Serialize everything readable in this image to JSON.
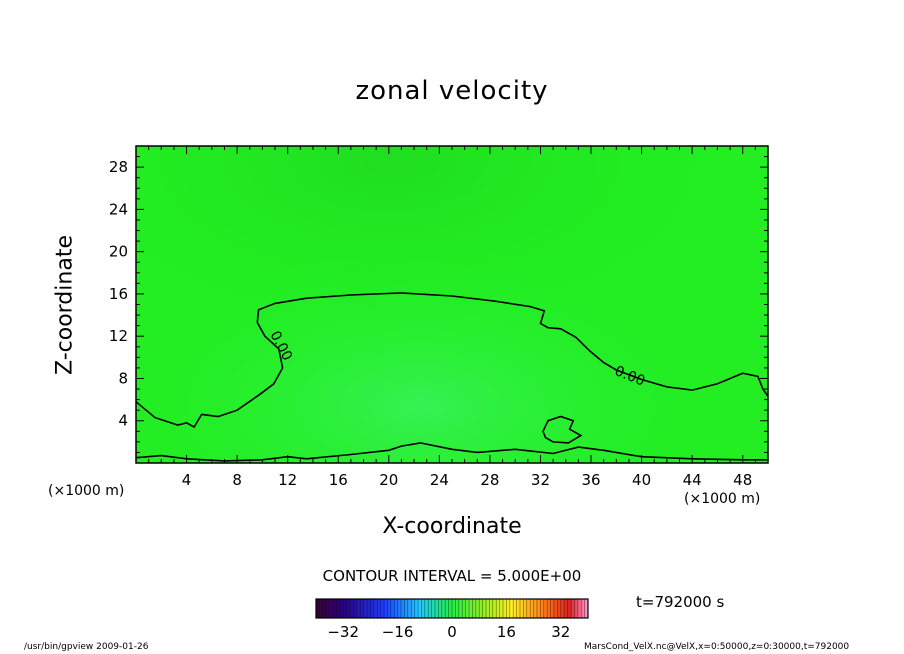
{
  "chart_data": {
    "type": "heatmap",
    "title": "zonal velocity",
    "xlabel": "X-coordinate",
    "ylabel": "Z-coordinate",
    "x_unit": "(×1000 m)",
    "y_unit": "(×1000 m)",
    "xlim": [
      0,
      50
    ],
    "ylim": [
      0,
      30
    ],
    "x_ticks": [
      4,
      8,
      12,
      16,
      20,
      24,
      28,
      32,
      36,
      40,
      44,
      48
    ],
    "y_ticks": [
      4,
      8,
      12,
      16,
      20,
      24,
      28
    ],
    "contour_interval": "CONTOUR INTERVAL = 5.000E+00",
    "contour_label": "0.00",
    "zero_contour": [
      [
        0,
        5.8
      ],
      [
        0.8,
        5.0
      ],
      [
        1.5,
        4.3
      ],
      [
        2.5,
        3.9
      ],
      [
        3.3,
        3.6
      ],
      [
        4.0,
        3.8
      ],
      [
        4.6,
        3.4
      ],
      [
        5.2,
        4.6
      ],
      [
        6.5,
        4.4
      ],
      [
        8.0,
        5.0
      ],
      [
        9.8,
        6.5
      ],
      [
        10.9,
        7.5
      ],
      [
        11.6,
        9.0
      ],
      [
        11.3,
        10.8
      ],
      [
        10.2,
        12.0
      ],
      [
        9.6,
        13.3
      ],
      [
        9.7,
        14.5
      ],
      [
        11.0,
        15.1
      ],
      [
        13.5,
        15.6
      ],
      [
        17.0,
        15.9
      ],
      [
        21.0,
        16.1
      ],
      [
        25.0,
        15.8
      ],
      [
        28.5,
        15.3
      ],
      [
        31.2,
        14.8
      ],
      [
        32.3,
        14.4
      ],
      [
        32.0,
        13.2
      ],
      [
        32.6,
        12.8
      ],
      [
        33.6,
        12.7
      ],
      [
        34.8,
        11.9
      ],
      [
        35.9,
        10.6
      ],
      [
        37.0,
        9.5
      ],
      [
        38.0,
        8.8
      ],
      [
        40.0,
        7.9
      ],
      [
        42.0,
        7.2
      ],
      [
        44.0,
        6.9
      ],
      [
        46.0,
        7.5
      ],
      [
        48.0,
        8.5
      ],
      [
        49.2,
        8.2
      ],
      [
        49.6,
        7.0
      ],
      [
        50.0,
        6.3
      ]
    ],
    "surface_contour": [
      [
        0,
        0.5
      ],
      [
        2.0,
        0.7
      ],
      [
        4.0,
        0.4
      ],
      [
        7.0,
        0.2
      ],
      [
        10.0,
        0.3
      ],
      [
        12.0,
        0.6
      ],
      [
        13.5,
        0.4
      ],
      [
        17.0,
        0.8
      ],
      [
        20.0,
        1.2
      ],
      [
        21.0,
        1.6
      ],
      [
        22.5,
        1.9
      ],
      [
        25.0,
        1.3
      ],
      [
        27.0,
        1.0
      ],
      [
        30.0,
        1.3
      ],
      [
        33.0,
        0.9
      ],
      [
        35.0,
        1.5
      ],
      [
        37.0,
        1.2
      ],
      [
        40.0,
        0.6
      ],
      [
        44.0,
        0.4
      ],
      [
        48.0,
        0.3
      ],
      [
        50.0,
        0.3
      ]
    ],
    "island": [
      [
        32.2,
        3.0
      ],
      [
        32.6,
        4.0
      ],
      [
        33.6,
        4.4
      ],
      [
        34.6,
        4.0
      ],
      [
        34.3,
        3.2
      ],
      [
        35.2,
        2.6
      ],
      [
        34.2,
        1.9
      ],
      [
        33.0,
        2.0
      ],
      [
        32.4,
        2.4
      ]
    ],
    "colorbar": {
      "ticks": [
        -32,
        -16,
        0,
        16,
        32
      ],
      "range": [
        -40,
        40
      ]
    },
    "time_label": "t=792000 s",
    "colors": {
      "field": "#22ee22",
      "field_dark": "#1bd81b",
      "field_light": "#33f245",
      "contour": "#000000"
    }
  },
  "footer": {
    "left": "/usr/bin/gpview   2009-01-26",
    "right": "MarsCond_VelX.nc@VelX,x=0:50000,z=0:30000,t=792000"
  }
}
